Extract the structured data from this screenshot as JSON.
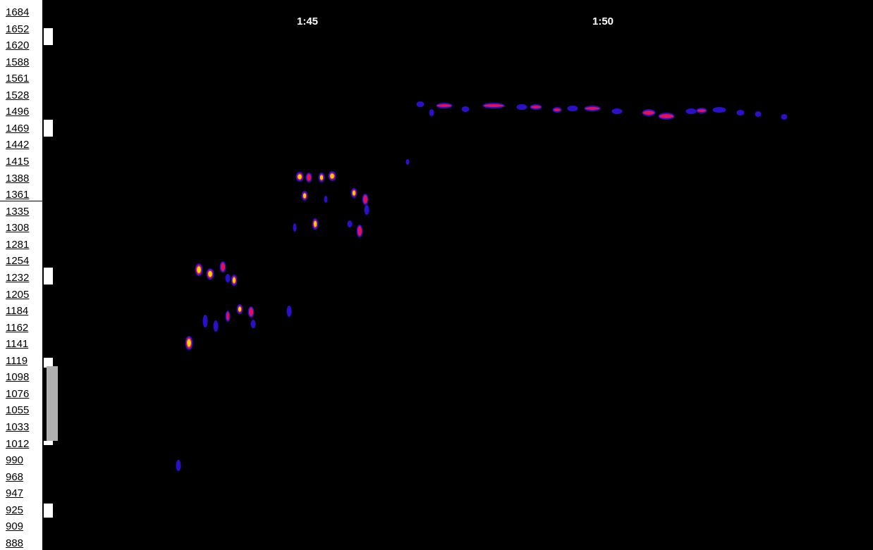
{
  "frequency_labels": [
    "1684",
    "1652",
    "1620",
    "1588",
    "1561",
    "1528",
    "1496",
    "1469",
    "1442",
    "1415",
    "1388",
    "1361",
    "1335",
    "1308",
    "1281",
    "1254",
    "1232",
    "1205",
    "1184",
    "1162",
    "1141",
    "1119",
    "1098",
    "1076",
    "1055",
    "1033",
    "1012",
    "990",
    "968",
    "947",
    "925",
    "909",
    "888"
  ],
  "time_labels": [
    "1:45",
    "1:50"
  ]
}
